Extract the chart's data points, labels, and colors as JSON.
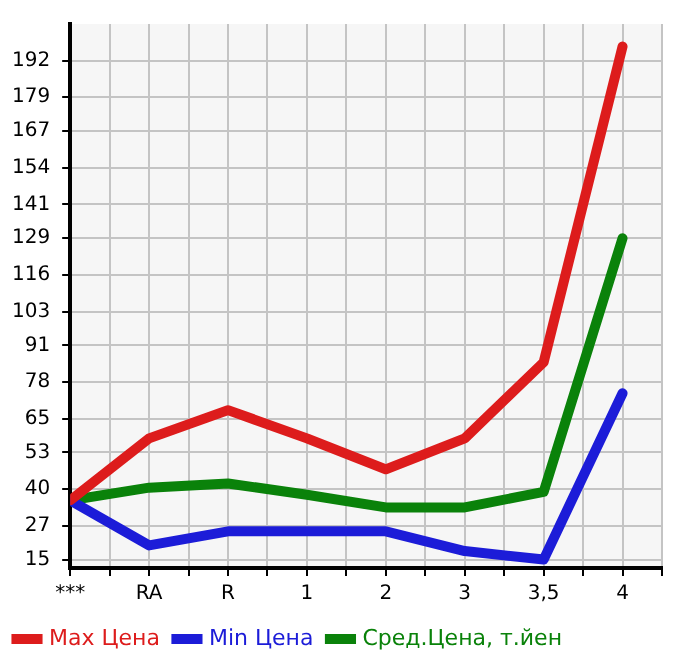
{
  "chart_data": {
    "type": "line",
    "categories": [
      "***",
      "RA",
      "R",
      "1",
      "2",
      "3",
      "3,5",
      "4"
    ],
    "series": [
      {
        "name": "Max Цена",
        "color": "#dd1c1c",
        "values": [
          36,
          58,
          68,
          58,
          47,
          58,
          85,
          197
        ]
      },
      {
        "name": "Min Цена",
        "color": "#1c1cd8",
        "values": [
          36,
          20,
          25,
          25,
          25,
          18,
          15,
          74
        ]
      },
      {
        "name": "Сред.Цена, т.йен",
        "color": "#0a820a",
        "values": [
          36,
          40.5,
          42,
          38,
          33.5,
          33.5,
          39,
          129
        ]
      }
    ],
    "ylim": [
      12,
      205
    ],
    "yticks": [
      15,
      27,
      40,
      53,
      65,
      78,
      91,
      103,
      116,
      129,
      141,
      154,
      167,
      179,
      192
    ],
    "grid": true,
    "legend": "bottom",
    "marker": "none",
    "line_style": "solid"
  }
}
